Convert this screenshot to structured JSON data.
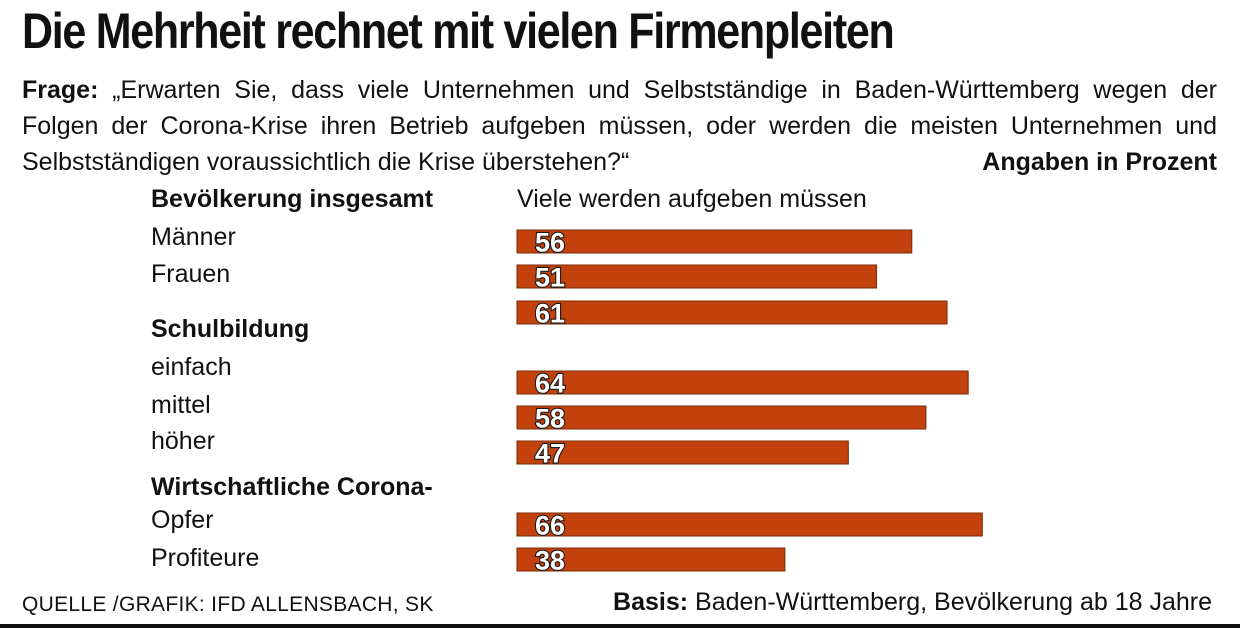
{
  "title": "Die Mehrheit rechnet mit vielen Firmenpleiten",
  "question_label": "Frage:",
  "question_text": "„Erwarten Sie, dass viele Unternehmen und Selbstständige in Baden-Württemberg wegen der Folgen der Corona-Krise ihren Betrieb aufgeben müssen, oder werden die meisten Unternehmen und Selbstständigen voraussichtlich die Krise überstehen?“",
  "unit_note": "Angaben in Prozent",
  "source": "QUELLE /GRAFIK: IFD ALLENSBACH, SK",
  "basis_label": "Basis:",
  "basis_text": "Baden-Württemberg, Bevölkerung ab 18 Jahre",
  "colors": {
    "bar": "#c2410c",
    "bar_stroke": "#7a2a08"
  },
  "chart_data": {
    "type": "bar",
    "orientation": "horizontal",
    "series_label": "Viele werden aufgeben müssen",
    "xlim": [
      0,
      100
    ],
    "groups": [
      {
        "heading": "Bevölkerung insgesamt",
        "rows": [
          {
            "label": "Männer",
            "value": 56
          },
          {
            "label": "Frauen",
            "value": 51
          },
          {
            "label": "",
            "value": 61
          }
        ]
      },
      {
        "heading": "Schulbildung",
        "rows": [
          {
            "label": "einfach",
            "value": 64
          },
          {
            "label": "mittel",
            "value": 58
          },
          {
            "label": "höher",
            "value": 47
          }
        ]
      },
      {
        "heading": "Wirtschaftliche Corona-",
        "rows": [
          {
            "label": "Opfer",
            "value": 66
          },
          {
            "label": "Profiteure",
            "value": 38
          }
        ]
      }
    ]
  }
}
